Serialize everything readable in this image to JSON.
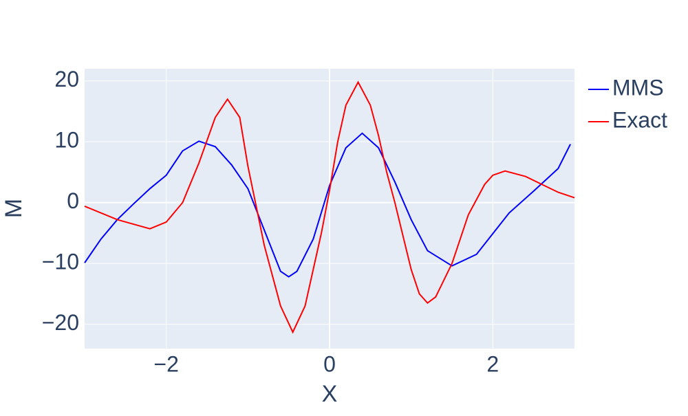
{
  "chart_data": {
    "type": "line",
    "x_label": "X",
    "y_label": "M",
    "xlim": [
      -3,
      3
    ],
    "ylim": [
      -24,
      22
    ],
    "xticks": [
      {
        "value": -2,
        "label": "−2"
      },
      0,
      2
    ],
    "yticks": [
      {
        "value": -20,
        "label": "−20"
      },
      {
        "value": -10,
        "label": "−10"
      },
      0,
      10,
      20
    ],
    "grid": true,
    "legend": "outside-top-right",
    "series": [
      {
        "name": "MMS",
        "color": "#0000ff",
        "x": [
          -3,
          -2.8,
          -2.6,
          -2.4,
          -2.2,
          -2,
          -1.8,
          -1.6,
          -1.4,
          -1.2,
          -1,
          -0.8,
          -0.6,
          -0.5,
          -0.4,
          -0.2,
          0,
          0.2,
          0.4,
          0.6,
          0.8,
          1,
          1.2,
          1.5,
          1.8,
          2,
          2.2,
          2.5,
          2.8,
          2.95
        ],
        "values": [
          -9.9,
          -6,
          -2.8,
          -0.2,
          2.3,
          4.5,
          8.5,
          10.1,
          9.2,
          6.2,
          2.3,
          -4.5,
          -11.3,
          -12.2,
          -11.3,
          -6,
          2.8,
          9,
          11.4,
          9,
          3.4,
          -2.8,
          -7.9,
          -10.4,
          -8.5,
          -5.1,
          -1.7,
          1.9,
          5.6,
          9.6
        ]
      },
      {
        "name": "Exact",
        "color": "#ff0000",
        "x": [
          -3,
          -2.6,
          -2.2,
          -2,
          -1.8,
          -1.6,
          -1.4,
          -1.25,
          -1.1,
          -1,
          -0.8,
          -0.6,
          -0.45,
          -0.3,
          -0.1,
          0,
          0.1,
          0.2,
          0.35,
          0.5,
          0.6,
          0.7,
          0.8,
          1,
          1.1,
          1.2,
          1.3,
          1.5,
          1.7,
          1.9,
          2,
          2.15,
          2.4,
          2.6,
          2.8,
          3
        ],
        "values": [
          -0.6,
          -2.8,
          -4.3,
          -3.2,
          0,
          6.5,
          14,
          17,
          14,
          6,
          -7,
          -17,
          -21.3,
          -17,
          -5,
          2,
          10,
          16,
          19.8,
          16,
          11,
          5,
          0,
          -11,
          -15,
          -16.5,
          -15.5,
          -10,
          -2,
          3,
          4.5,
          5.2,
          4.3,
          3,
          1.7,
          0.8
        ]
      }
    ]
  }
}
